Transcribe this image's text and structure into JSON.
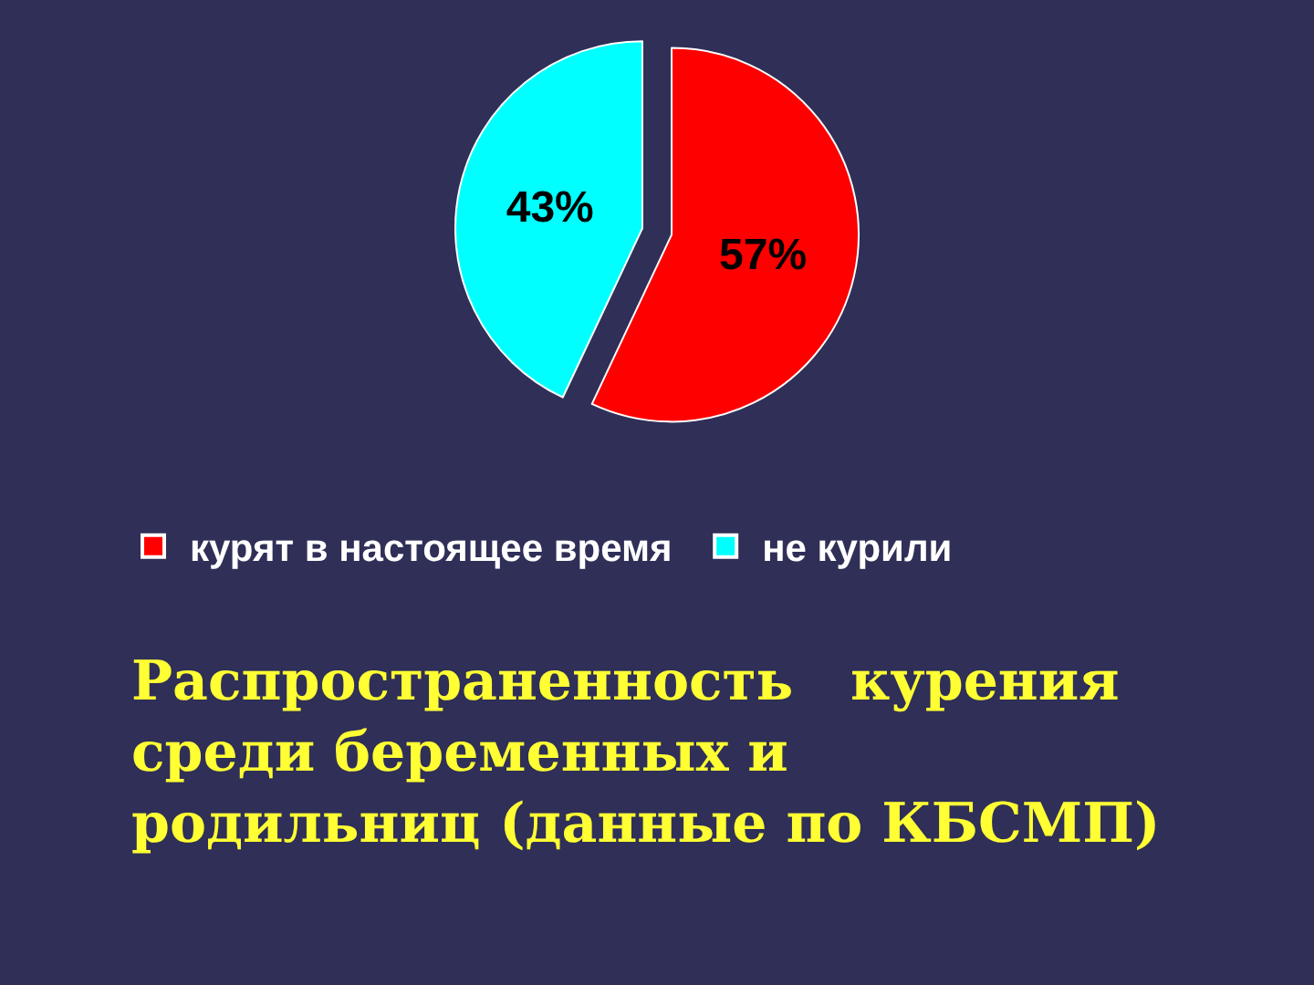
{
  "chart_data": {
    "type": "pie",
    "title": "Распространенность   курения\nсреди беременных и\nродильниц (данные по КБСМП)",
    "categories": [
      "курят в настоящее время",
      "не курили"
    ],
    "values": [
      57,
      43
    ],
    "colors": [
      "#ff0000",
      "#00ffff"
    ],
    "value_labels": [
      "57%",
      "43%"
    ],
    "legend": "bottom"
  }
}
